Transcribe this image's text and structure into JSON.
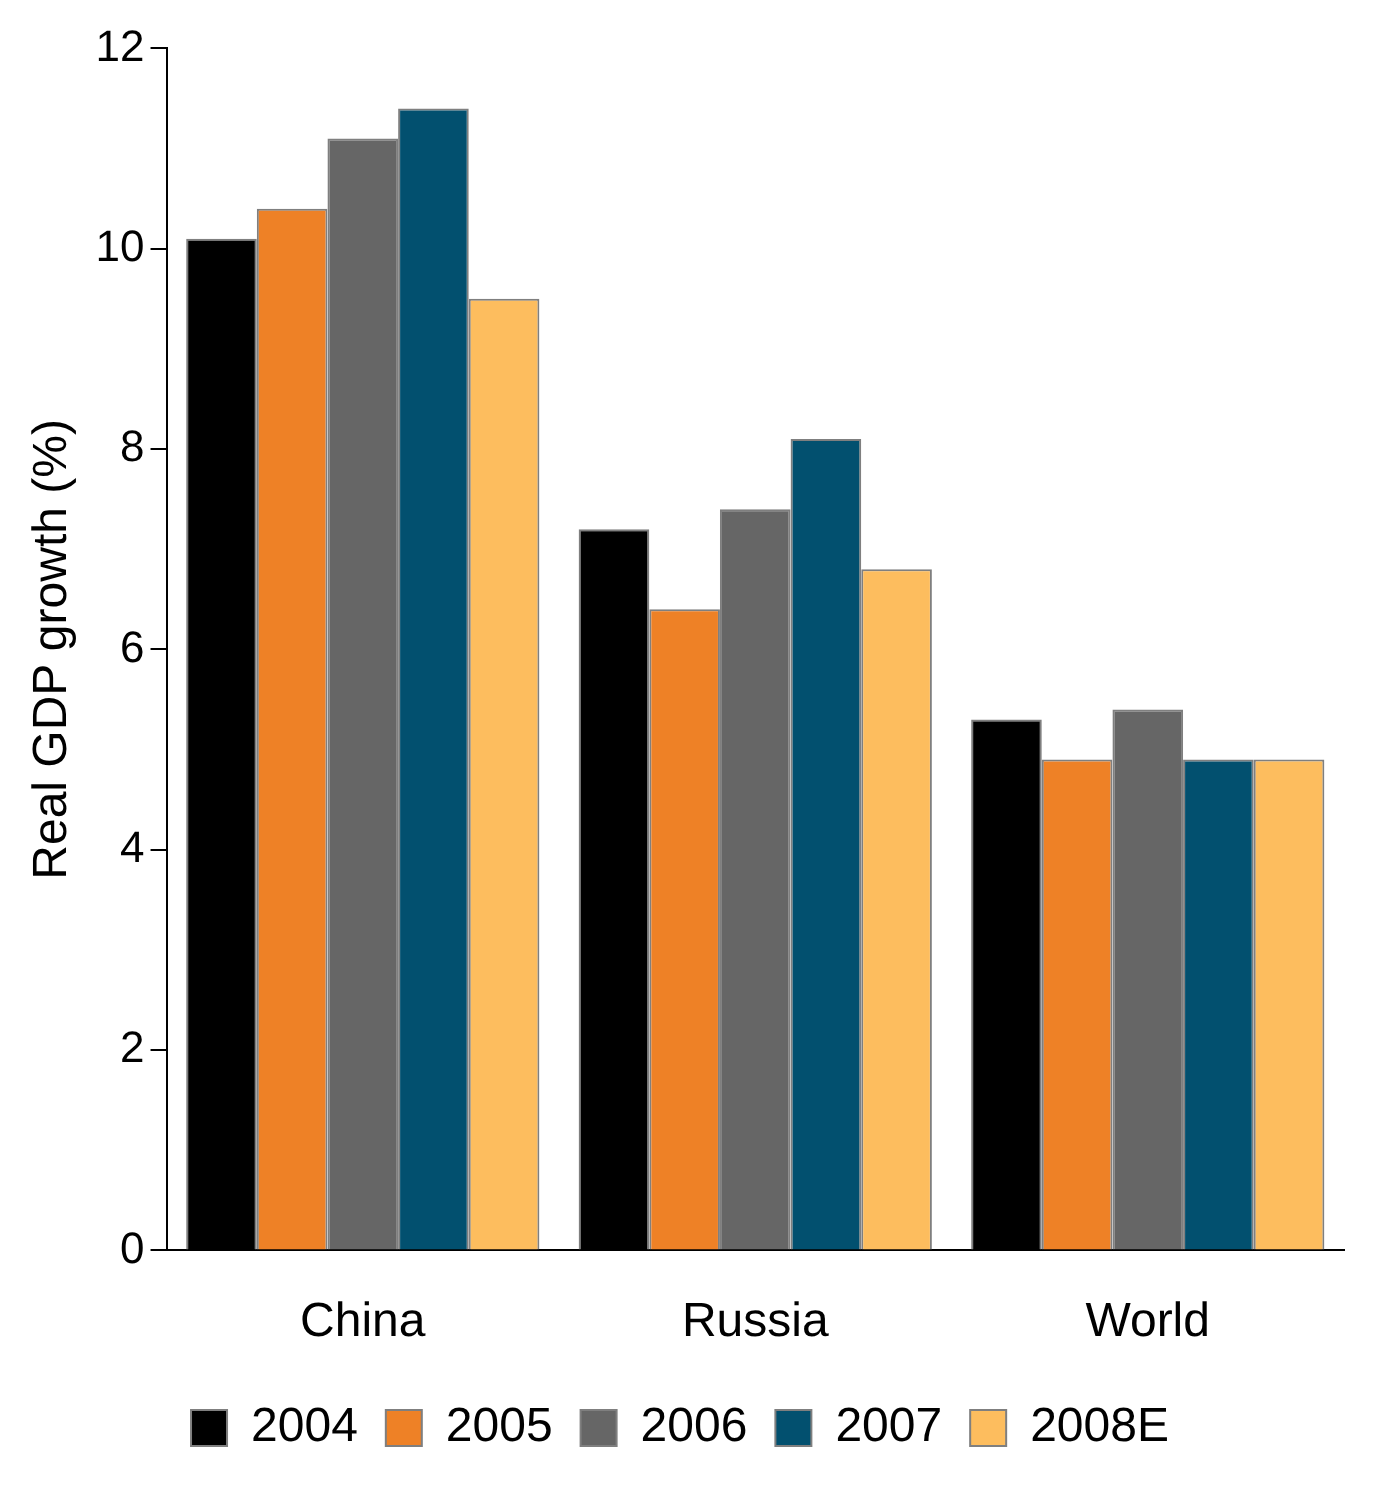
{
  "chart_data": {
    "type": "bar",
    "ylabel": "Real GDP growth (%)",
    "categories": [
      "China",
      "Russia",
      "World"
    ],
    "series": [
      {
        "name": "2004",
        "color": "#000000",
        "values": [
          10.1,
          7.2,
          5.3
        ]
      },
      {
        "name": "2005",
        "color": "#ee8126",
        "values": [
          10.4,
          6.4,
          4.9
        ]
      },
      {
        "name": "2006",
        "color": "#666666",
        "values": [
          11.1,
          7.4,
          5.4
        ]
      },
      {
        "name": "2007",
        "color": "#02506f",
        "values": [
          11.4,
          8.1,
          4.9
        ]
      },
      {
        "name": "2008E",
        "color": "#fdbd5e",
        "values": [
          9.5,
          6.8,
          4.9
        ]
      }
    ],
    "ylim": [
      0,
      12
    ],
    "yticks": [
      0,
      2,
      4,
      6,
      8,
      10,
      12
    ],
    "grid": false,
    "legend": "bottom"
  }
}
